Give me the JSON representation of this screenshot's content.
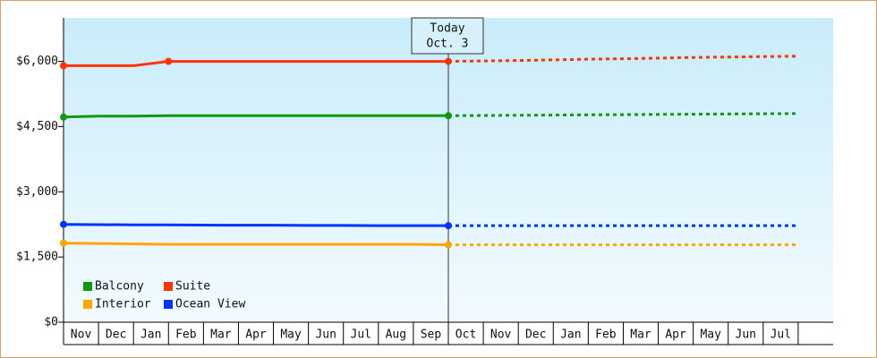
{
  "chart_data": {
    "type": "line",
    "categories": [
      "Nov",
      "Dec",
      "Jan",
      "Feb",
      "Mar",
      "Apr",
      "May",
      "Jun",
      "Jul",
      "Aug",
      "Sep",
      "Oct",
      "Nov",
      "Dec",
      "Jan",
      "Feb",
      "Mar",
      "Apr",
      "May",
      "Jun",
      "Jul",
      null
    ],
    "ylim": [
      0,
      7000
    ],
    "yticks": [
      {
        "value": 0,
        "label": "$0"
      },
      {
        "value": 1500,
        "label": "$1,500"
      },
      {
        "value": 3000,
        "label": "$3,000"
      },
      {
        "value": 4500,
        "label": "$4,500"
      },
      {
        "value": 6000,
        "label": "$6,000"
      }
    ],
    "annotation": [
      "Today",
      "Oct. 3"
    ],
    "legend": "lower left",
    "series": [
      {
        "name": "Balcony",
        "color": "#119911",
        "values": [
          4720,
          4740,
          4740,
          4750,
          4750,
          4750,
          4750,
          4750,
          4750,
          4750,
          4750,
          4750,
          null,
          null,
          null,
          null,
          null,
          null,
          null,
          null,
          null,
          null
        ],
        "projected": [
          null,
          null,
          null,
          null,
          null,
          null,
          null,
          null,
          null,
          null,
          null,
          4750,
          4755,
          4760,
          4765,
          4770,
          4775,
          4780,
          4785,
          4790,
          4795,
          4800
        ]
      },
      {
        "name": "Suite",
        "color": "#ff3300",
        "values": [
          5900,
          5900,
          5900,
          6000,
          6000,
          6000,
          6000,
          6000,
          6000,
          6000,
          6000,
          6000,
          null,
          null,
          null,
          null,
          null,
          null,
          null,
          null,
          null,
          null
        ],
        "projected": [
          null,
          null,
          null,
          null,
          null,
          null,
          null,
          null,
          null,
          null,
          null,
          6000,
          6010,
          6020,
          6035,
          6050,
          6060,
          6075,
          6090,
          6100,
          6110,
          6120
        ]
      },
      {
        "name": "Interior",
        "color": "#ffa500",
        "values": [
          1820,
          1810,
          1800,
          1790,
          1790,
          1790,
          1790,
          1790,
          1790,
          1790,
          1790,
          1780,
          null,
          null,
          null,
          null,
          null,
          null,
          null,
          null,
          null,
          null
        ],
        "projected": [
          null,
          null,
          null,
          null,
          null,
          null,
          null,
          null,
          null,
          null,
          null,
          1780,
          1780,
          1780,
          1780,
          1780,
          1780,
          1780,
          1780,
          1780,
          1780,
          1780
        ]
      },
      {
        "name": "Ocean View",
        "color": "#0033ff",
        "values": [
          2250,
          2245,
          2240,
          2240,
          2235,
          2230,
          2230,
          2225,
          2225,
          2220,
          2220,
          2220,
          null,
          null,
          null,
          null,
          null,
          null,
          null,
          null,
          null,
          null
        ],
        "projected": [
          null,
          null,
          null,
          null,
          null,
          null,
          null,
          null,
          null,
          null,
          null,
          2220,
          2220,
          2220,
          2220,
          2220,
          2220,
          2220,
          2220,
          2220,
          2220,
          2220
        ]
      }
    ]
  }
}
